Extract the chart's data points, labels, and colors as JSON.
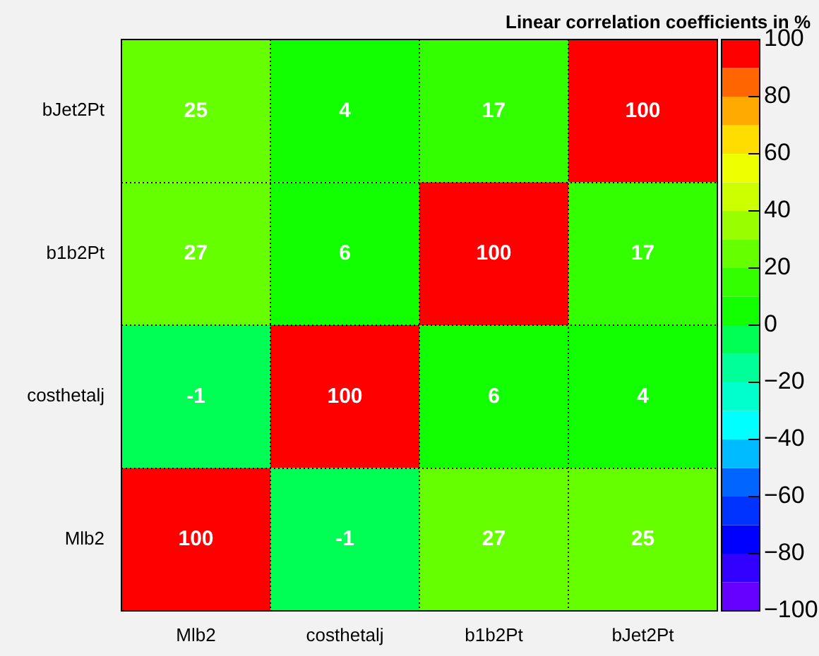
{
  "chart_data": {
    "type": "heatmap",
    "title": "Linear correlation coefficients in %",
    "categories": [
      "Mlb2",
      "costhetalj",
      "b1b2Pt",
      "bJet2Pt"
    ],
    "y_categories": [
      "bJet2Pt",
      "b1b2Pt",
      "costhetalj",
      "Mlb2"
    ],
    "cells": [
      [
        25,
        4,
        17,
        100
      ],
      [
        27,
        6,
        100,
        17
      ],
      [
        -1,
        100,
        6,
        4
      ],
      [
        100,
        -1,
        27,
        25
      ]
    ],
    "clim": [
      -100,
      100
    ],
    "cticks": [
      -100,
      -80,
      -60,
      -40,
      -20,
      0,
      20,
      40,
      60,
      80,
      100
    ],
    "colors": [
      "#6600ff",
      "#3300ff",
      "#0000ff",
      "#0033ff",
      "#0066ff",
      "#00bbff",
      "#00ffff",
      "#00ffcc",
      "#00ff99",
      "#00ff55",
      "#11ff00",
      "#33ff00",
      "#66ff00",
      "#99ff00",
      "#ccff00",
      "#eeff00",
      "#ffdd00",
      "#ffaa00",
      "#ff6600",
      "#ff0000"
    ],
    "data_labels": true,
    "grid": true
  }
}
